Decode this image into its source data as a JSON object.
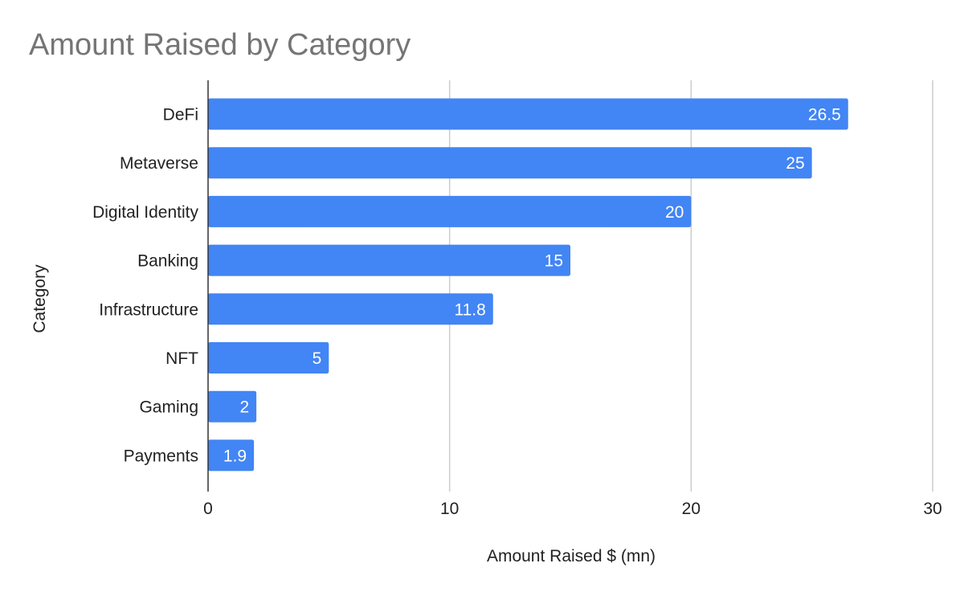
{
  "chart_data": {
    "type": "bar",
    "orientation": "horizontal",
    "title": "Amount Raised by Category",
    "xlabel": "Amount Raised $ (mn)",
    "ylabel": "Category",
    "categories": [
      "DeFi",
      "Metaverse",
      "Digital Identity",
      "Banking",
      "Infrastructure",
      "NFT",
      "Gaming",
      "Payments"
    ],
    "values": [
      26.5,
      25,
      20,
      15,
      11.8,
      5,
      2,
      1.9
    ],
    "data_labels": [
      "26.5",
      "25",
      "20",
      "15",
      "11.8",
      "5",
      "2",
      "1.9"
    ],
    "xlim": [
      0,
      30
    ],
    "x_ticks": [
      0,
      10,
      20,
      30
    ],
    "x_tick_labels": [
      "0",
      "10",
      "20",
      "30"
    ],
    "grid": true,
    "legend": "none",
    "colors": {
      "bar": "#4285F4",
      "grid": "#cccccc",
      "axis": "#333333",
      "title": "#757575",
      "text": "#222222",
      "bar_label": "#ffffff"
    }
  }
}
